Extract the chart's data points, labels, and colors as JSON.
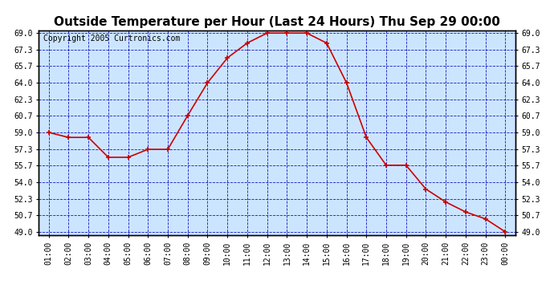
{
  "title": "Outside Temperature per Hour (Last 24 Hours) Thu Sep 29 00:00",
  "copyright": "Copyright 2005 Curtronics.com",
  "hours": [
    "01:00",
    "02:00",
    "03:00",
    "04:00",
    "05:00",
    "06:00",
    "07:00",
    "08:00",
    "09:00",
    "10:00",
    "11:00",
    "12:00",
    "13:00",
    "14:00",
    "15:00",
    "16:00",
    "17:00",
    "18:00",
    "19:00",
    "20:00",
    "21:00",
    "22:00",
    "23:00",
    "00:00"
  ],
  "temps": [
    59.0,
    58.5,
    58.5,
    56.5,
    56.5,
    57.3,
    57.3,
    60.7,
    64.0,
    66.5,
    68.0,
    69.0,
    69.0,
    69.0,
    68.0,
    64.0,
    58.5,
    55.7,
    55.7,
    53.3,
    52.0,
    51.0,
    50.3,
    49.0
  ],
  "line_color": "#cc0000",
  "marker_color": "#cc0000",
  "outer_bg": "#ffffff",
  "plot_bg": "#cce5ff",
  "grid_color": "#0000bb",
  "border_color": "#000000",
  "title_color": "#000000",
  "ymin": 49.0,
  "ymax": 69.0,
  "yticks": [
    49.0,
    50.7,
    52.3,
    54.0,
    55.7,
    57.3,
    59.0,
    60.7,
    62.3,
    64.0,
    65.7,
    67.3,
    69.0
  ],
  "title_fontsize": 11,
  "copyright_fontsize": 7,
  "tick_fontsize": 7
}
